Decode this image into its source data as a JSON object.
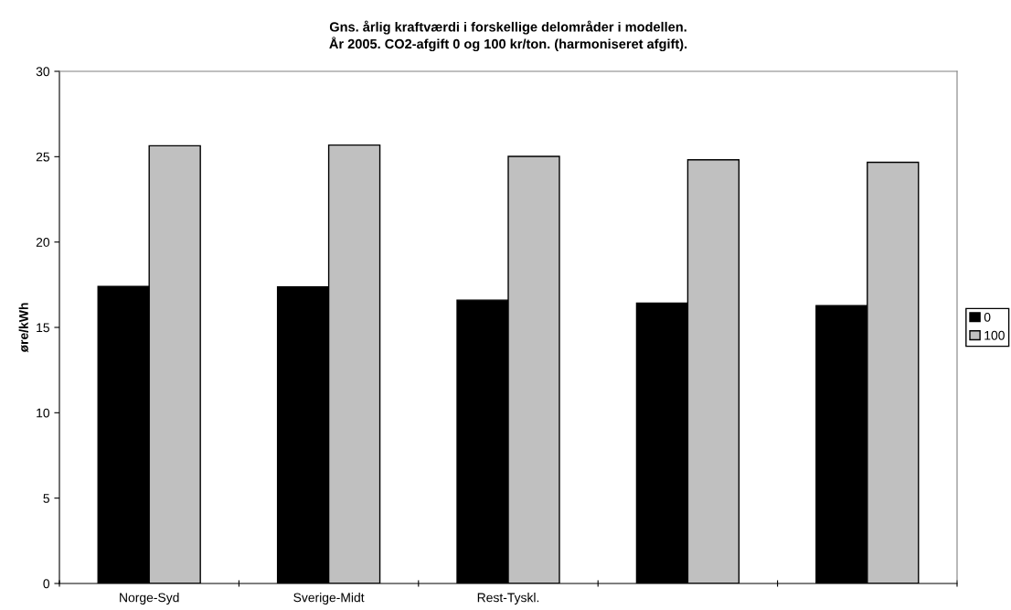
{
  "chart_data": {
    "type": "bar",
    "title": "Gns. årlig kraftværdi i forskellige delområder i modellen.\nÅr 2005. CO2-afgift 0 og 100 kr/ton. (harmoniseret afgift).",
    "ylabel": "øre/kWh",
    "categories": [
      "Norge-Syd",
      "Sverige-Midt",
      "Rest-Tyskl.",
      null,
      null
    ],
    "series": [
      {
        "name": "0",
        "color": "#000000",
        "values": [
          17.4,
          17.37,
          16.6,
          16.42,
          16.28
        ]
      },
      {
        "name": "100",
        "color": "#c0c0c0",
        "values": [
          25.64,
          25.68,
          25.02,
          24.82,
          24.67
        ]
      }
    ],
    "ylim": [
      0,
      30
    ],
    "yticks": [
      0,
      5,
      10,
      15,
      20,
      25,
      30
    ],
    "grid": false,
    "legend": "right"
  }
}
